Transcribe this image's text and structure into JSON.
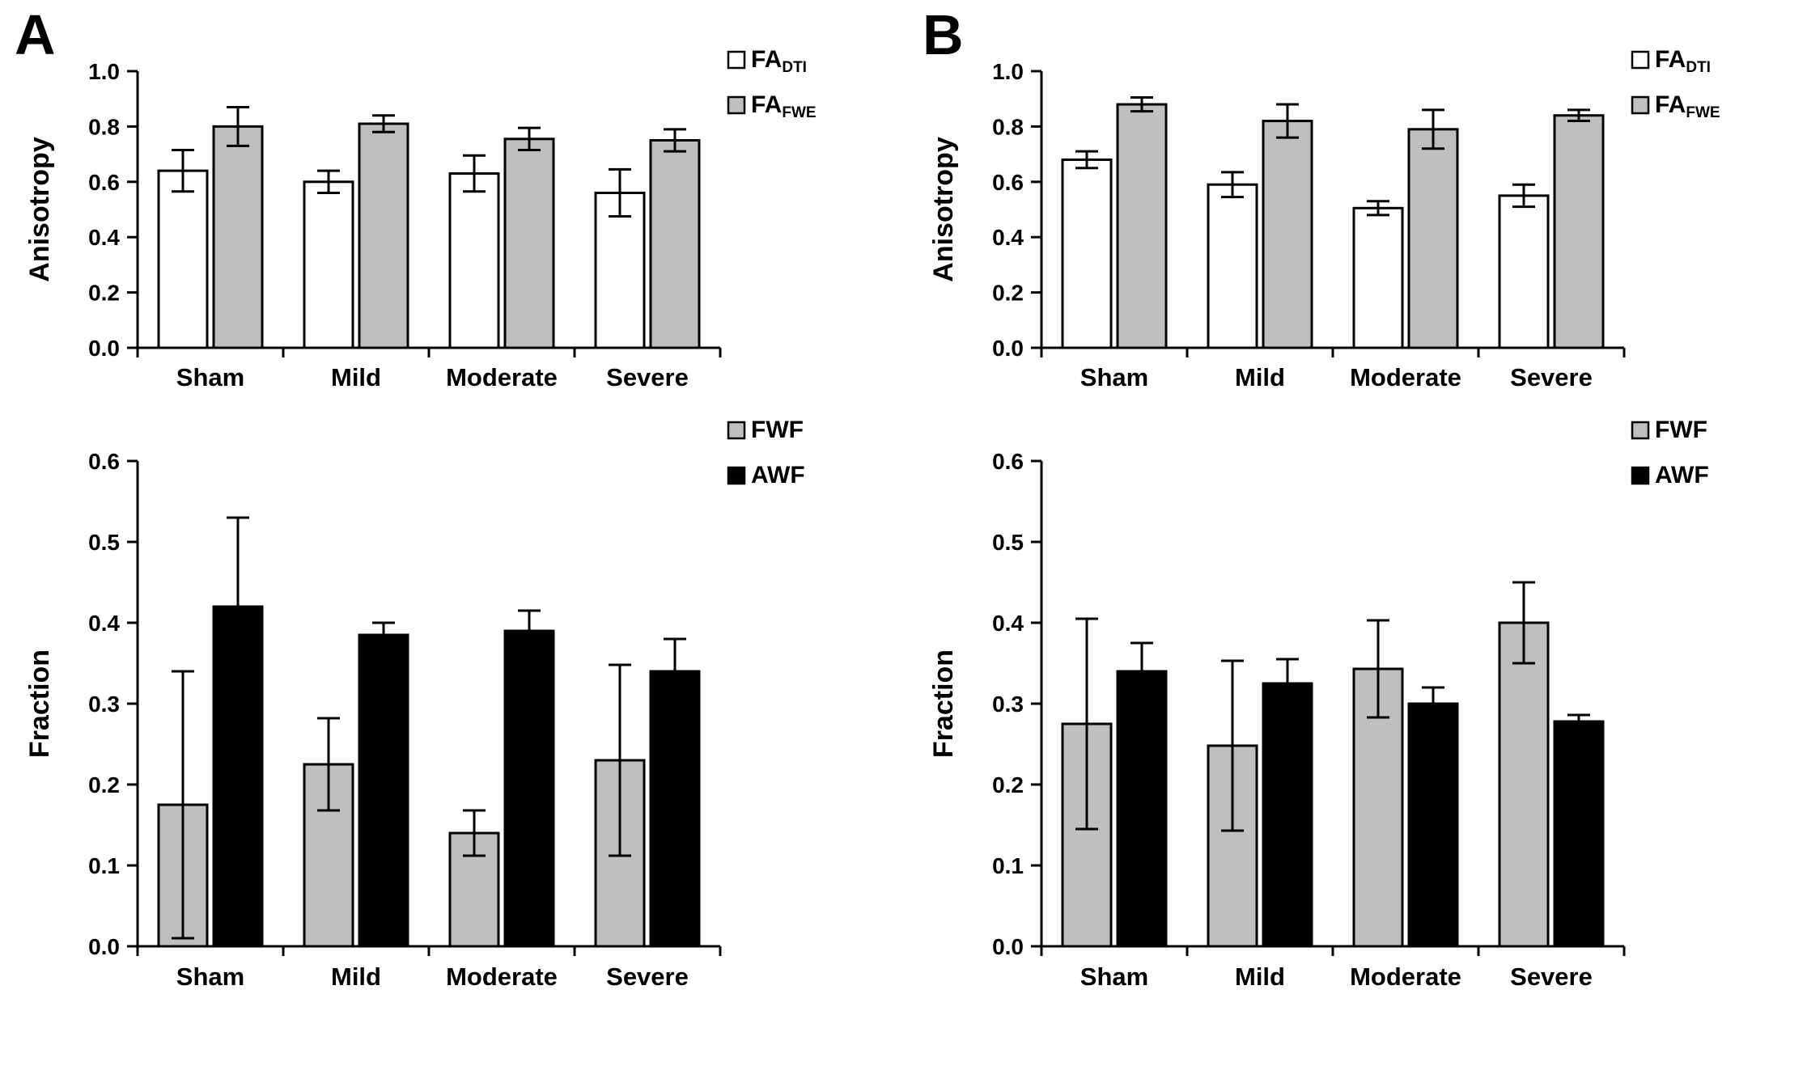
{
  "figure": {
    "panels": [
      {
        "label": "A"
      },
      {
        "label": "B"
      }
    ]
  },
  "colors": {
    "bar_white": "#ffffff",
    "bar_gray": "#bfbfbf",
    "bar_black": "#000000",
    "axis": "#000000"
  },
  "chart_data": [
    {
      "id": "panel-a-anisotropy",
      "panel": "A",
      "row": "top",
      "type": "bar",
      "ylabel": "Anisotropy",
      "ylim": [
        0,
        1.0
      ],
      "yticks": [
        0.0,
        0.2,
        0.4,
        0.6,
        0.8,
        1.0
      ],
      "grid": false,
      "legend_position": "top-right",
      "categories": [
        "Sham",
        "Mild",
        "Moderate",
        "Severe"
      ],
      "series": [
        {
          "name": "FA_DTI",
          "label_base": "FA",
          "label_sub": "DTI",
          "color": "#ffffff",
          "values": [
            0.64,
            0.6,
            0.63,
            0.56
          ],
          "errors": [
            0.075,
            0.04,
            0.065,
            0.085
          ]
        },
        {
          "name": "FA_FWE",
          "label_base": "FA",
          "label_sub": "FWE",
          "color": "#bfbfbf",
          "values": [
            0.8,
            0.81,
            0.755,
            0.75
          ],
          "errors": [
            0.07,
            0.03,
            0.04,
            0.04
          ]
        }
      ]
    },
    {
      "id": "panel-b-anisotropy",
      "panel": "B",
      "row": "top",
      "type": "bar",
      "ylabel": "Anisotropy",
      "ylim": [
        0,
        1.0
      ],
      "yticks": [
        0.0,
        0.2,
        0.4,
        0.6,
        0.8,
        1.0
      ],
      "grid": false,
      "legend_position": "top-right",
      "categories": [
        "Sham",
        "Mild",
        "Moderate",
        "Severe"
      ],
      "series": [
        {
          "name": "FA_DTI",
          "label_base": "FA",
          "label_sub": "DTI",
          "color": "#ffffff",
          "values": [
            0.68,
            0.59,
            0.505,
            0.55
          ],
          "errors": [
            0.03,
            0.045,
            0.025,
            0.04
          ]
        },
        {
          "name": "FA_FWE",
          "label_base": "FA",
          "label_sub": "FWE",
          "color": "#bfbfbf",
          "values": [
            0.88,
            0.82,
            0.79,
            0.84
          ],
          "errors": [
            0.025,
            0.06,
            0.07,
            0.02
          ]
        }
      ]
    },
    {
      "id": "panel-a-fraction",
      "panel": "A",
      "row": "bottom",
      "type": "bar",
      "ylabel": "Fraction",
      "ylim": [
        0,
        0.6
      ],
      "yticks": [
        0.0,
        0.1,
        0.2,
        0.3,
        0.4,
        0.5,
        0.6
      ],
      "grid": false,
      "legend_position": "top-right",
      "categories": [
        "Sham",
        "Mild",
        "Moderate",
        "Severe"
      ],
      "series": [
        {
          "name": "FWF",
          "label_base": "FWF",
          "label_sub": "",
          "color": "#bfbfbf",
          "values": [
            0.175,
            0.225,
            0.14,
            0.23
          ],
          "errors": [
            0.165,
            0.057,
            0.028,
            0.118
          ]
        },
        {
          "name": "AWF",
          "label_base": "AWF",
          "label_sub": "",
          "color": "#000000",
          "values": [
            0.42,
            0.385,
            0.39,
            0.34
          ],
          "errors": [
            0.11,
            0.015,
            0.025,
            0.04
          ]
        }
      ]
    },
    {
      "id": "panel-b-fraction",
      "panel": "B",
      "row": "bottom",
      "type": "bar",
      "ylabel": "Fraction",
      "ylim": [
        0,
        0.6
      ],
      "yticks": [
        0.0,
        0.1,
        0.2,
        0.3,
        0.4,
        0.5,
        0.6
      ],
      "grid": false,
      "legend_position": "top-right",
      "categories": [
        "Sham",
        "Mild",
        "Moderate",
        "Severe"
      ],
      "series": [
        {
          "name": "FWF",
          "label_base": "FWF",
          "label_sub": "",
          "color": "#bfbfbf",
          "values": [
            0.275,
            0.248,
            0.343,
            0.4
          ],
          "errors": [
            0.13,
            0.105,
            0.06,
            0.05
          ]
        },
        {
          "name": "AWF",
          "label_base": "AWF",
          "label_sub": "",
          "color": "#000000",
          "values": [
            0.34,
            0.325,
            0.3,
            0.278
          ],
          "errors": [
            0.035,
            0.03,
            0.02,
            0.008
          ]
        }
      ]
    }
  ]
}
